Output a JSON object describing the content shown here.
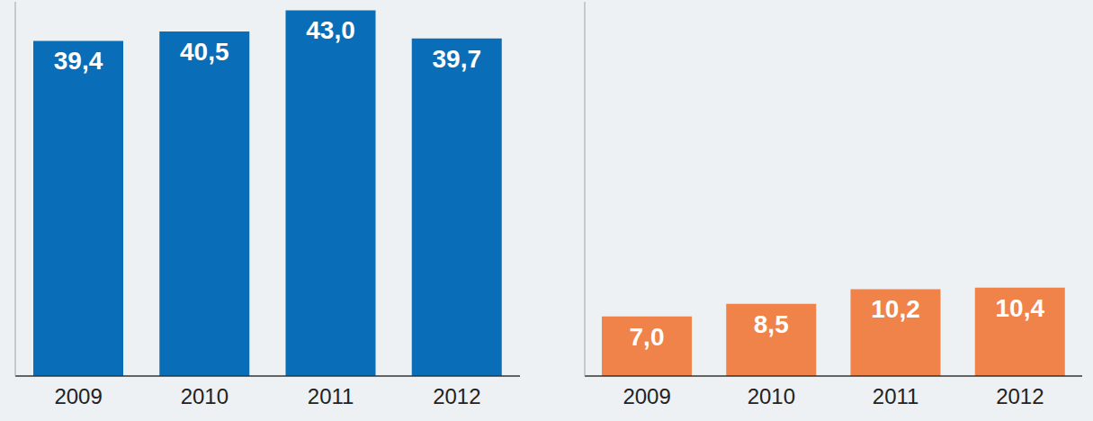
{
  "chart_data": [
    {
      "type": "bar",
      "categories": [
        "2009",
        "2010",
        "2011",
        "2012"
      ],
      "values": [
        39.4,
        40.5,
        43.0,
        39.7
      ],
      "value_labels": [
        "39,4",
        "40,5",
        "43,0",
        "39,7"
      ],
      "color": "#0a6db7",
      "ylim": [
        0,
        44
      ],
      "data_labels": true,
      "tick_labels": "x",
      "grid": false
    },
    {
      "type": "bar",
      "categories": [
        "2009",
        "2010",
        "2011",
        "2012"
      ],
      "values": [
        7.0,
        8.5,
        10.2,
        10.4
      ],
      "value_labels": [
        "7,0",
        "8,5",
        "10,2",
        "10,4"
      ],
      "color": "#f0834a",
      "ylim": [
        0,
        44
      ],
      "data_labels": true,
      "tick_labels": "x",
      "grid": false
    }
  ]
}
